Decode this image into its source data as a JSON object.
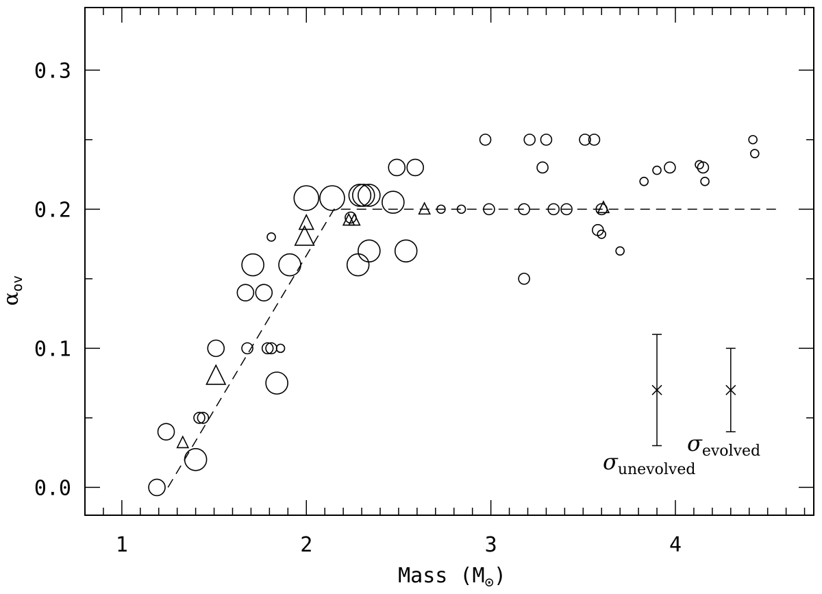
{
  "chart_data": {
    "type": "scatter",
    "title": "",
    "xlabel": "Mass (M",
    "xlabel_sub_symbol": "⊙",
    "xlabel_close": ")",
    "ylabel_greek": "α",
    "ylabel_sub": "ov",
    "xlim": [
      0.8,
      4.75
    ],
    "ylim": [
      -0.02,
      0.345
    ],
    "x_ticks_major": [
      1,
      2,
      3,
      4
    ],
    "x_tick_labels": [
      "1",
      "2",
      "3",
      "4"
    ],
    "y_ticks_major": [
      0.0,
      0.1,
      0.2,
      0.3
    ],
    "y_tick_labels": [
      "0.0",
      "0.1",
      "0.2",
      "0.3"
    ],
    "grid": false,
    "series": [
      {
        "name": "circles",
        "marker": "circle",
        "points": [
          {
            "x": 1.19,
            "y": 0.0,
            "size": "medium"
          },
          {
            "x": 1.24,
            "y": 0.04,
            "size": "medium"
          },
          {
            "x": 1.4,
            "y": 0.02,
            "size": "large"
          },
          {
            "x": 1.42,
            "y": 0.05,
            "size": "small"
          },
          {
            "x": 1.44,
            "y": 0.05,
            "size": "small"
          },
          {
            "x": 1.51,
            "y": 0.1,
            "size": "medium"
          },
          {
            "x": 1.67,
            "y": 0.14,
            "size": "medium"
          },
          {
            "x": 1.68,
            "y": 0.1,
            "size": "small"
          },
          {
            "x": 1.71,
            "y": 0.16,
            "size": "large"
          },
          {
            "x": 1.77,
            "y": 0.14,
            "size": "medium"
          },
          {
            "x": 1.79,
            "y": 0.1,
            "size": "small"
          },
          {
            "x": 1.81,
            "y": 0.1,
            "size": "small"
          },
          {
            "x": 1.81,
            "y": 0.18,
            "size": "tiny"
          },
          {
            "x": 1.84,
            "y": 0.075,
            "size": "large"
          },
          {
            "x": 1.86,
            "y": 0.1,
            "size": "tiny"
          },
          {
            "x": 1.91,
            "y": 0.16,
            "size": "large"
          },
          {
            "x": 2.0,
            "y": 0.208,
            "size": "xlarge"
          },
          {
            "x": 2.14,
            "y": 0.208,
            "size": "xlarge"
          },
          {
            "x": 2.24,
            "y": 0.194,
            "size": "small"
          },
          {
            "x": 2.28,
            "y": 0.16,
            "size": "large"
          },
          {
            "x": 2.29,
            "y": 0.21,
            "size": "large"
          },
          {
            "x": 2.31,
            "y": 0.21,
            "size": "large"
          },
          {
            "x": 2.34,
            "y": 0.21,
            "size": "large"
          },
          {
            "x": 2.34,
            "y": 0.17,
            "size": "large"
          },
          {
            "x": 2.47,
            "y": 0.205,
            "size": "large"
          },
          {
            "x": 2.49,
            "y": 0.23,
            "size": "medium"
          },
          {
            "x": 2.54,
            "y": 0.17,
            "size": "large"
          },
          {
            "x": 2.59,
            "y": 0.23,
            "size": "medium"
          },
          {
            "x": 2.73,
            "y": 0.2,
            "size": "tiny"
          },
          {
            "x": 2.84,
            "y": 0.2,
            "size": "tiny"
          },
          {
            "x": 2.97,
            "y": 0.25,
            "size": "small"
          },
          {
            "x": 2.99,
            "y": 0.2,
            "size": "small"
          },
          {
            "x": 3.18,
            "y": 0.15,
            "size": "small"
          },
          {
            "x": 3.18,
            "y": 0.2,
            "size": "small"
          },
          {
            "x": 3.21,
            "y": 0.25,
            "size": "small"
          },
          {
            "x": 3.28,
            "y": 0.23,
            "size": "small"
          },
          {
            "x": 3.3,
            "y": 0.25,
            "size": "small"
          },
          {
            "x": 3.34,
            "y": 0.2,
            "size": "small"
          },
          {
            "x": 3.41,
            "y": 0.2,
            "size": "small"
          },
          {
            "x": 3.51,
            "y": 0.25,
            "size": "small"
          },
          {
            "x": 3.56,
            "y": 0.25,
            "size": "small"
          },
          {
            "x": 3.58,
            "y": 0.185,
            "size": "small"
          },
          {
            "x": 3.6,
            "y": 0.182,
            "size": "tiny"
          },
          {
            "x": 3.6,
            "y": 0.2,
            "size": "small"
          },
          {
            "x": 3.7,
            "y": 0.17,
            "size": "tiny"
          },
          {
            "x": 3.83,
            "y": 0.22,
            "size": "tiny"
          },
          {
            "x": 3.9,
            "y": 0.228,
            "size": "tiny"
          },
          {
            "x": 3.97,
            "y": 0.23,
            "size": "small"
          },
          {
            "x": 4.13,
            "y": 0.232,
            "size": "tiny"
          },
          {
            "x": 4.15,
            "y": 0.23,
            "size": "small"
          },
          {
            "x": 4.16,
            "y": 0.22,
            "size": "tiny"
          },
          {
            "x": 4.42,
            "y": 0.25,
            "size": "tiny"
          },
          {
            "x": 4.43,
            "y": 0.24,
            "size": "tiny"
          }
        ]
      },
      {
        "name": "triangles",
        "marker": "triangle",
        "points": [
          {
            "x": 1.33,
            "y": 0.032,
            "size": "small"
          },
          {
            "x": 1.51,
            "y": 0.08,
            "size": "large"
          },
          {
            "x": 1.99,
            "y": 0.18,
            "size": "large"
          },
          {
            "x": 2.0,
            "y": 0.19,
            "size": "medium"
          },
          {
            "x": 2.23,
            "y": 0.192,
            "size": "small"
          },
          {
            "x": 2.26,
            "y": 0.192,
            "size": "small"
          },
          {
            "x": 2.64,
            "y": 0.2,
            "size": "small"
          },
          {
            "x": 3.61,
            "y": 0.201,
            "size": "small"
          }
        ]
      }
    ],
    "fit_line": {
      "style": "dashed",
      "points": [
        [
          1.25,
          0.0
        ],
        [
          2.15,
          0.2
        ],
        [
          4.55,
          0.2
        ]
      ]
    },
    "error_bars": [
      {
        "name": "unevolved",
        "x": 3.9,
        "y": 0.07,
        "ylow": 0.03,
        "yhigh": 0.11,
        "label": "σ",
        "label_sub": "unevolved"
      },
      {
        "name": "evolved",
        "x": 4.3,
        "y": 0.07,
        "ylow": 0.04,
        "yhigh": 0.1,
        "label": "σ",
        "label_sub": "evolved"
      }
    ]
  }
}
